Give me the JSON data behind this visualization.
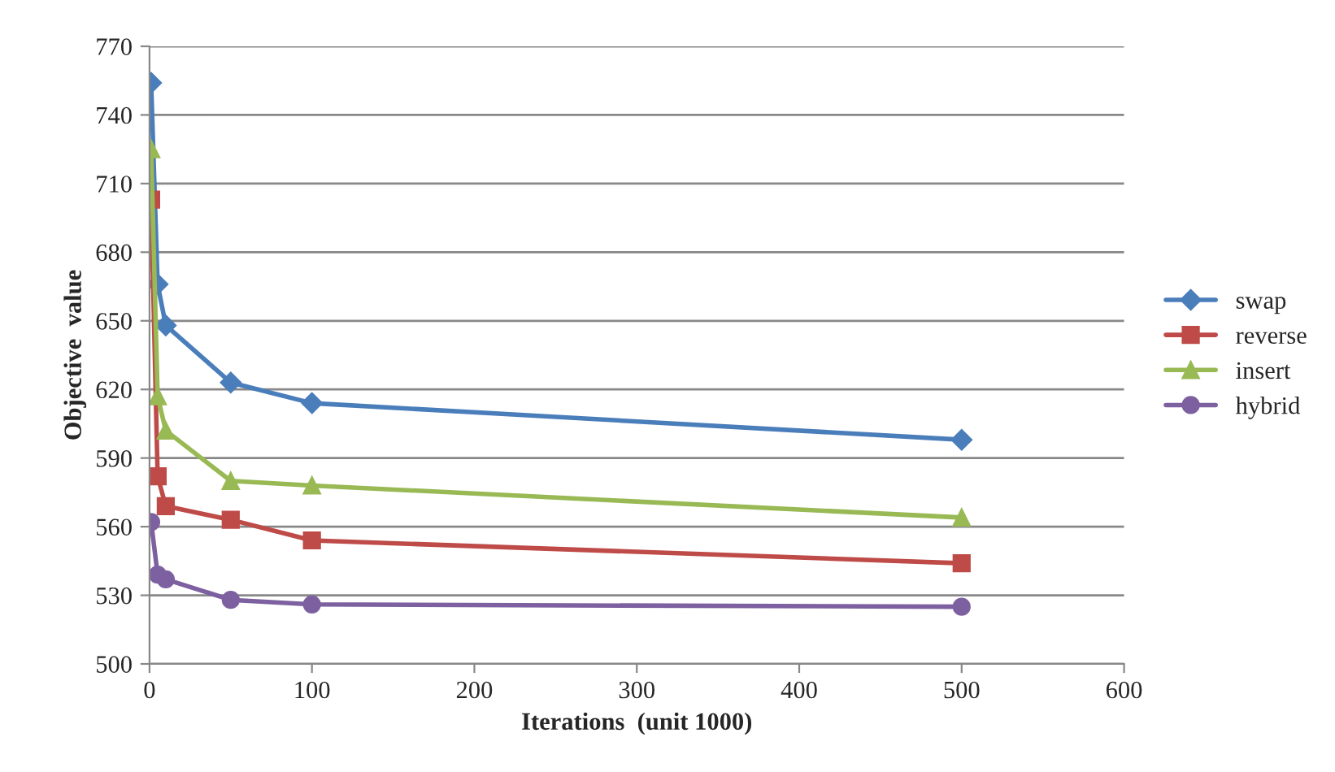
{
  "chart_data": {
    "type": "line",
    "xlabel": "Iterations  (unit 1000)",
    "ylabel": "Objective  value",
    "x": [
      1,
      5,
      10,
      50,
      100,
      500
    ],
    "series": [
      {
        "name": "swap",
        "color": "#4a7ebb",
        "marker": "diamond",
        "values": [
          754,
          666,
          648,
          623,
          614,
          598
        ]
      },
      {
        "name": "reverse",
        "color": "#be4b48",
        "marker": "square",
        "values": [
          703,
          582,
          569,
          563,
          554,
          544
        ]
      },
      {
        "name": "insert",
        "color": "#98b954",
        "marker": "triangle",
        "values": [
          725,
          617,
          602,
          580,
          578,
          564
        ]
      },
      {
        "name": "hybrid",
        "color": "#7d60a0",
        "marker": "circle",
        "values": [
          562,
          539,
          537,
          528,
          526,
          525
        ]
      }
    ],
    "xlim": [
      0,
      600
    ],
    "xticks": [
      0,
      100,
      200,
      300,
      400,
      500,
      600
    ],
    "ylim": [
      500,
      770
    ],
    "yticks": [
      500,
      530,
      560,
      590,
      620,
      650,
      680,
      710,
      740,
      770
    ],
    "grid": "y",
    "legend": "right",
    "line_style": "solid"
  }
}
